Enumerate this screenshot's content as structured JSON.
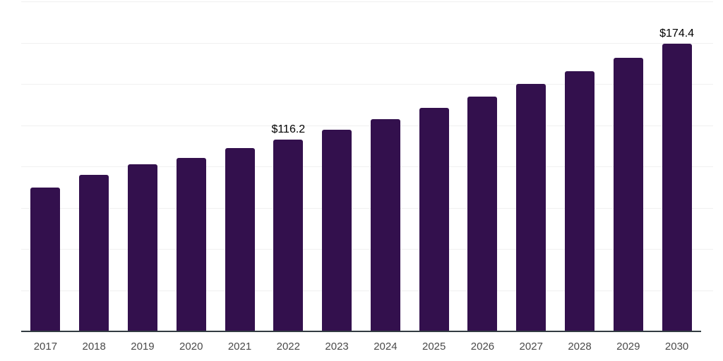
{
  "chart_data": {
    "type": "bar",
    "title": "",
    "xlabel": "",
    "ylabel": "",
    "categories": [
      "2017",
      "2018",
      "2019",
      "2020",
      "2021",
      "2022",
      "2023",
      "2024",
      "2025",
      "2026",
      "2027",
      "2028",
      "2029",
      "2030"
    ],
    "values": [
      87.2,
      94.8,
      101.2,
      105.1,
      111.0,
      116.2,
      122.3,
      128.6,
      135.3,
      142.4,
      149.8,
      157.6,
      165.8,
      174.4
    ],
    "data_labels": {
      "2022": "$116.2",
      "2030": "$174.4"
    },
    "ylim": [
      0,
      200
    ],
    "grid": true,
    "gridline_step": 25,
    "legend": false,
    "colors": {
      "bar": "#33104d",
      "axis_line": "#323c42",
      "gridline": "#f0f0f0",
      "tick_label": "#4a4a4a",
      "data_label": "#000000"
    }
  }
}
